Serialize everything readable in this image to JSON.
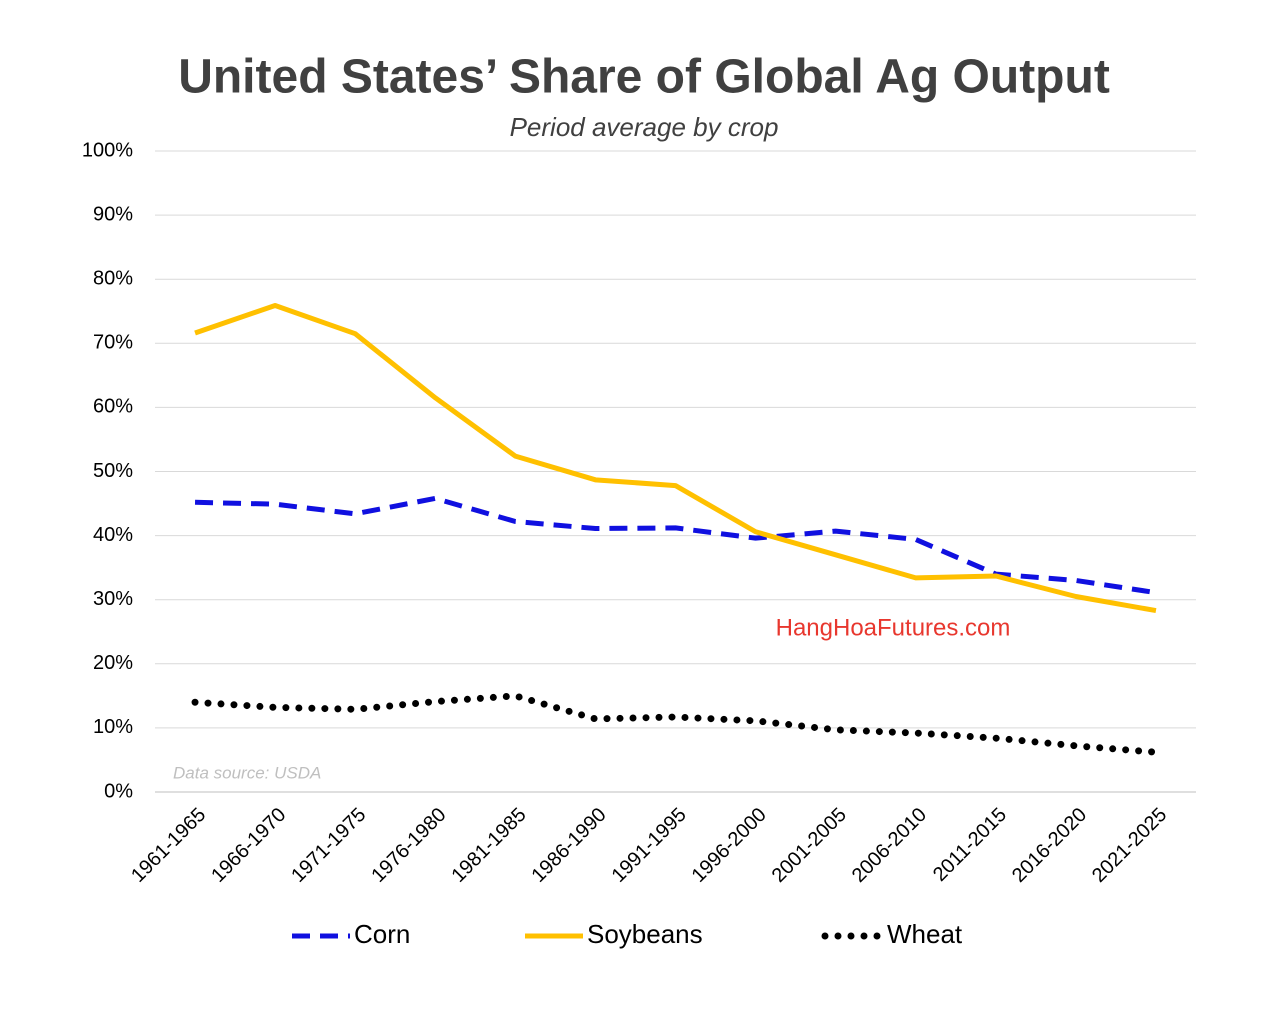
{
  "chart_data": {
    "type": "line",
    "title": "United States’ Share of Global Ag Output",
    "subtitle": "Period average by crop",
    "categories": [
      "1961-1965",
      "1966-1970",
      "1971-1975",
      "1976-1980",
      "1981-1985",
      "1986-1990",
      "1991-1995",
      "1996-2000",
      "2001-2005",
      "2006-2010",
      "2011-2015",
      "2016-2020",
      "2021-2025"
    ],
    "series": [
      {
        "name": "Corn",
        "color": "#1010e0",
        "line_style": "dashed",
        "values": [
          45.2,
          44.9,
          43.4,
          45.8,
          42.2,
          41.1,
          41.2,
          39.6,
          40.7,
          39.4,
          34.0,
          33.0,
          31.1
        ]
      },
      {
        "name": "Soybeans",
        "color": "#ffc000",
        "line_style": "solid",
        "values": [
          71.6,
          75.9,
          71.5,
          61.5,
          52.4,
          48.7,
          47.8,
          40.6,
          37.0,
          33.4,
          33.7,
          30.5,
          28.3
        ]
      },
      {
        "name": "Wheat",
        "color": "#000000",
        "line_style": "dotted",
        "values": [
          14.0,
          13.2,
          12.9,
          14.1,
          15.0,
          11.4,
          11.7,
          11.1,
          9.7,
          9.2,
          8.4,
          7.2,
          6.2
        ]
      }
    ],
    "ylim": [
      0,
      100
    ],
    "yticks": [
      {
        "value": 0,
        "label": "0%"
      },
      {
        "value": 10,
        "label": "10%"
      },
      {
        "value": 20,
        "label": "20%"
      },
      {
        "value": 30,
        "label": "30%"
      },
      {
        "value": 40,
        "label": "40%"
      },
      {
        "value": 50,
        "label": "50%"
      },
      {
        "value": 60,
        "label": "60%"
      },
      {
        "value": 70,
        "label": "70%"
      },
      {
        "value": 80,
        "label": "80%"
      },
      {
        "value": 90,
        "label": "90%"
      },
      {
        "value": 100,
        "label": "100%"
      }
    ],
    "grid": true,
    "legend": "bottom",
    "watermark": "HangHoaFutures.com",
    "source": "Data source: USDA"
  }
}
